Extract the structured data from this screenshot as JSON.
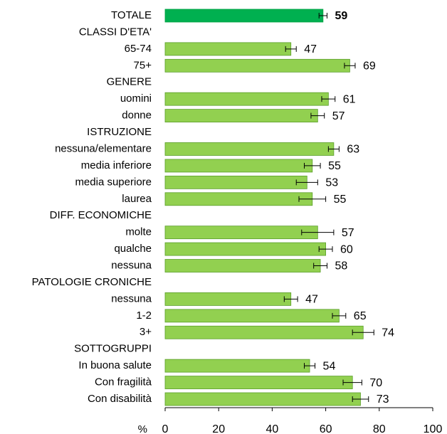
{
  "chart_data": {
    "type": "bar",
    "orientation": "horizontal",
    "categories": [
      "TOTALE",
      "CLASSI D'ETA'",
      "65-74",
      "75+",
      "GENERE",
      "uomini",
      "donne",
      "ISTRUZIONE",
      "nessuna/elementare",
      "media inferiore",
      "media superiore",
      "laurea",
      "DIFF. ECONOMICHE",
      "molte",
      "qualche",
      "nessuna",
      "PATOLOGIE CRONICHE",
      "nessuna",
      "1-2",
      "3+",
      "SOTTOGRUPPI",
      "In buona salute",
      "Con fragilità",
      "Con disabilità"
    ],
    "values": [
      59,
      null,
      47,
      69,
      null,
      61,
      57,
      null,
      63,
      55,
      53,
      55,
      null,
      57,
      60,
      58,
      null,
      47,
      65,
      74,
      null,
      54,
      70,
      73
    ],
    "errors": [
      1.5,
      null,
      2,
      2,
      null,
      2.5,
      2.5,
      null,
      2,
      3,
      4,
      5,
      null,
      6,
      2.5,
      2.5,
      null,
      2.5,
      2.5,
      4,
      null,
      2,
      3.5,
      3
    ],
    "color": "#92d050",
    "highlight_color": "#00b050",
    "highlight_index": 0,
    "x_label": "%",
    "xlim": [
      0,
      100
    ],
    "xticks": [
      0,
      20,
      40,
      60,
      80,
      100
    ]
  }
}
